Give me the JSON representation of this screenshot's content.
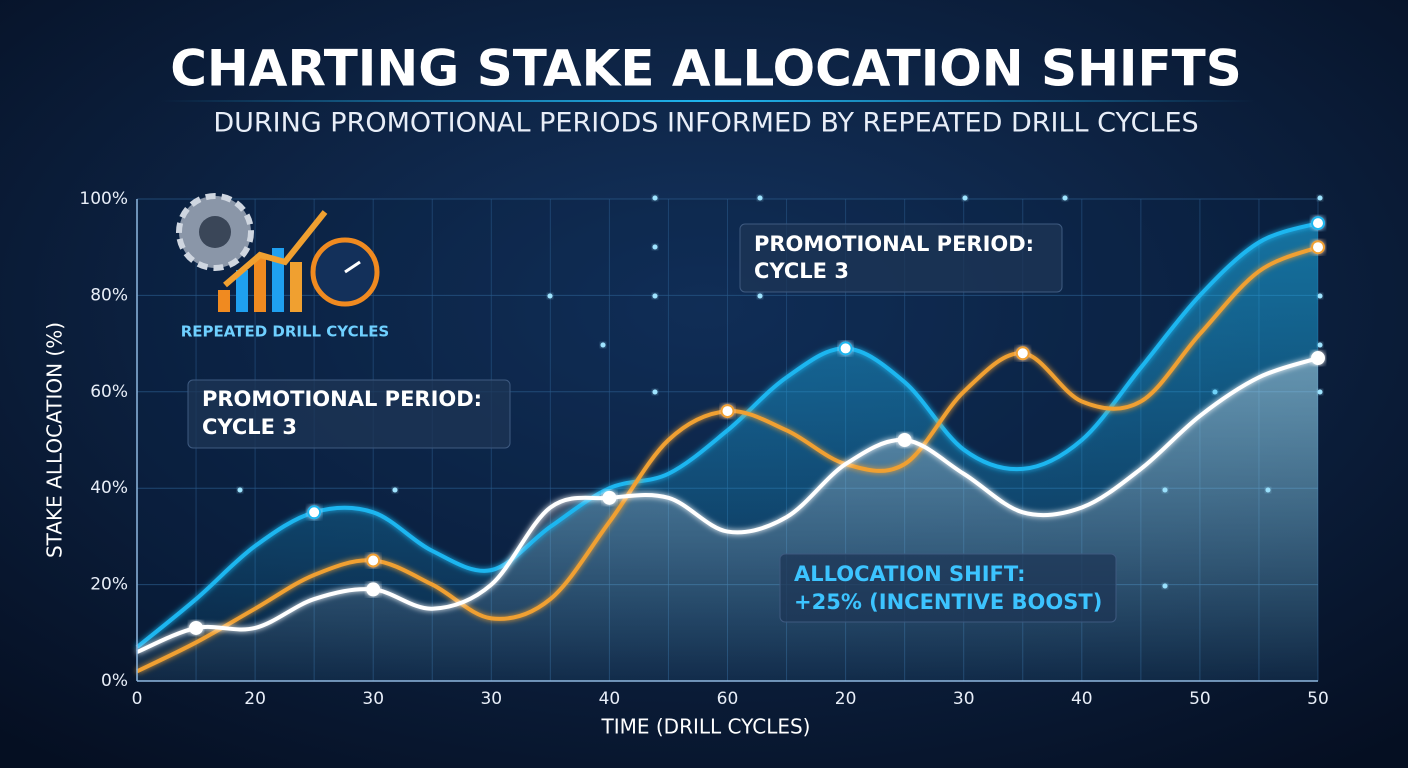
{
  "chart_data": {
    "type": "line",
    "title": "CHARTING STAKE ALLOCATION SHIFTS",
    "subtitle": "DURING PROMOTIONAL PERIODS INFORMED BY REPEATED DRILL CYCLES",
    "x_label": "TIME (DRILL CYCLES)",
    "y_label": "STAKE ALLOCATION (%)",
    "logo_text": "REPEATED DRILL CYCLES",
    "annotations": [
      {
        "lines": [
          "PROMOTIONAL PERIOD:",
          "CYCLE 3"
        ]
      },
      {
        "lines": [
          "PROMOTIONAL PERIOD:",
          "CYCLE 3"
        ]
      },
      {
        "lines": [
          "ALLOCATION SHIFT:",
          "+25% (INCENTIVE BOOST)"
        ]
      }
    ],
    "categories": [
      "0",
      null,
      "20",
      null,
      "30",
      null,
      "30",
      null,
      "40",
      null,
      "60",
      null,
      "20",
      null,
      "30",
      null,
      "40",
      null,
      "50",
      null,
      "50"
    ],
    "series": [
      {
        "color": "#1fb6f0",
        "fill": true,
        "values": [
          7,
          17,
          28,
          35,
          35,
          27,
          23,
          32,
          40,
          43,
          52,
          63,
          69,
          62,
          48,
          44,
          50,
          65,
          80,
          91,
          95
        ]
      },
      {
        "color": "#f0a030",
        "fill": false,
        "values": [
          2,
          8,
          15,
          22,
          25,
          20,
          13,
          17,
          33,
          50,
          56,
          52,
          45,
          45,
          60,
          68,
          58,
          58,
          72,
          85,
          90
        ]
      },
      {
        "color": "#ffffff",
        "fill": true,
        "values": [
          6,
          11,
          11,
          17,
          19,
          15,
          20,
          36,
          38,
          38,
          31,
          34,
          45,
          50,
          43,
          35,
          36,
          44,
          55,
          63,
          67
        ]
      }
    ],
    "ylim": [
      0,
      100
    ],
    "yticks": [
      {
        "value": 0,
        "label": "0%"
      },
      {
        "value": 20,
        "label": "20%"
      },
      {
        "value": 40,
        "label": "40%"
      },
      {
        "value": 60,
        "label": "60%"
      },
      {
        "value": 80,
        "label": "80%"
      },
      {
        "value": 100,
        "label": "100%"
      }
    ],
    "grid": true
  }
}
